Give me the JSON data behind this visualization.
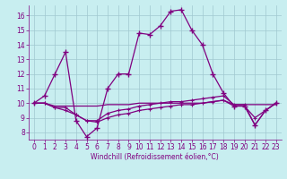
{
  "xlabel": "Windchill (Refroidissement éolien,°C)",
  "bg_color": "#c8eef0",
  "grid_color": "#a0c8d0",
  "line_color": "#800080",
  "xlim": [
    -0.5,
    23.5
  ],
  "ylim": [
    7.5,
    16.7
  ],
  "xticks": [
    0,
    1,
    2,
    3,
    4,
    5,
    6,
    7,
    8,
    9,
    10,
    11,
    12,
    13,
    14,
    15,
    16,
    17,
    18,
    19,
    20,
    21,
    22,
    23
  ],
  "yticks": [
    8,
    9,
    10,
    11,
    12,
    13,
    14,
    15,
    16
  ],
  "line1_x": [
    0,
    1,
    2,
    3,
    4,
    5,
    6,
    7,
    8,
    9,
    10,
    11,
    12,
    13,
    14,
    15,
    16,
    17,
    18,
    19,
    20,
    21,
    22,
    23
  ],
  "line1_y": [
    10.0,
    10.5,
    12.0,
    13.5,
    8.8,
    7.7,
    8.3,
    11.0,
    12.0,
    12.0,
    14.8,
    14.7,
    15.3,
    16.3,
    16.4,
    15.0,
    14.0,
    12.0,
    10.7,
    9.8,
    9.8,
    8.5,
    9.5,
    10.0
  ],
  "line2_x": [
    0,
    1,
    2,
    3,
    4,
    5,
    6,
    7,
    8,
    9,
    10,
    11,
    12,
    13,
    14,
    15,
    16,
    17,
    18,
    19,
    20,
    21,
    22,
    23
  ],
  "line2_y": [
    10.0,
    10.0,
    9.8,
    9.8,
    9.8,
    9.8,
    9.8,
    9.9,
    9.9,
    9.9,
    10.0,
    10.0,
    10.0,
    10.0,
    10.0,
    10.0,
    10.0,
    10.1,
    10.2,
    9.9,
    9.9,
    9.9,
    9.9,
    9.9
  ],
  "line3_x": [
    0,
    1,
    2,
    3,
    4,
    5,
    6,
    7,
    8,
    9,
    10,
    11,
    12,
    13,
    14,
    15,
    16,
    17,
    18,
    19,
    20,
    21,
    22,
    23
  ],
  "line3_y": [
    10.0,
    10.0,
    9.7,
    9.5,
    9.2,
    8.8,
    8.7,
    9.0,
    9.2,
    9.3,
    9.5,
    9.6,
    9.7,
    9.8,
    9.9,
    9.9,
    10.0,
    10.1,
    10.2,
    9.8,
    9.8,
    9.0,
    9.5,
    10.0
  ],
  "line4_x": [
    0,
    1,
    2,
    3,
    4,
    5,
    6,
    7,
    8,
    9,
    10,
    11,
    12,
    13,
    14,
    15,
    16,
    17,
    18,
    19,
    20,
    21,
    22,
    23
  ],
  "line4_y": [
    10.0,
    10.0,
    9.7,
    9.7,
    9.2,
    8.8,
    8.8,
    9.3,
    9.5,
    9.6,
    9.8,
    9.9,
    10.0,
    10.1,
    10.1,
    10.2,
    10.3,
    10.4,
    10.5,
    9.9,
    9.9,
    8.5,
    9.5,
    10.0
  ],
  "tick_fontsize": 5.5,
  "xlabel_fontsize": 5.5
}
